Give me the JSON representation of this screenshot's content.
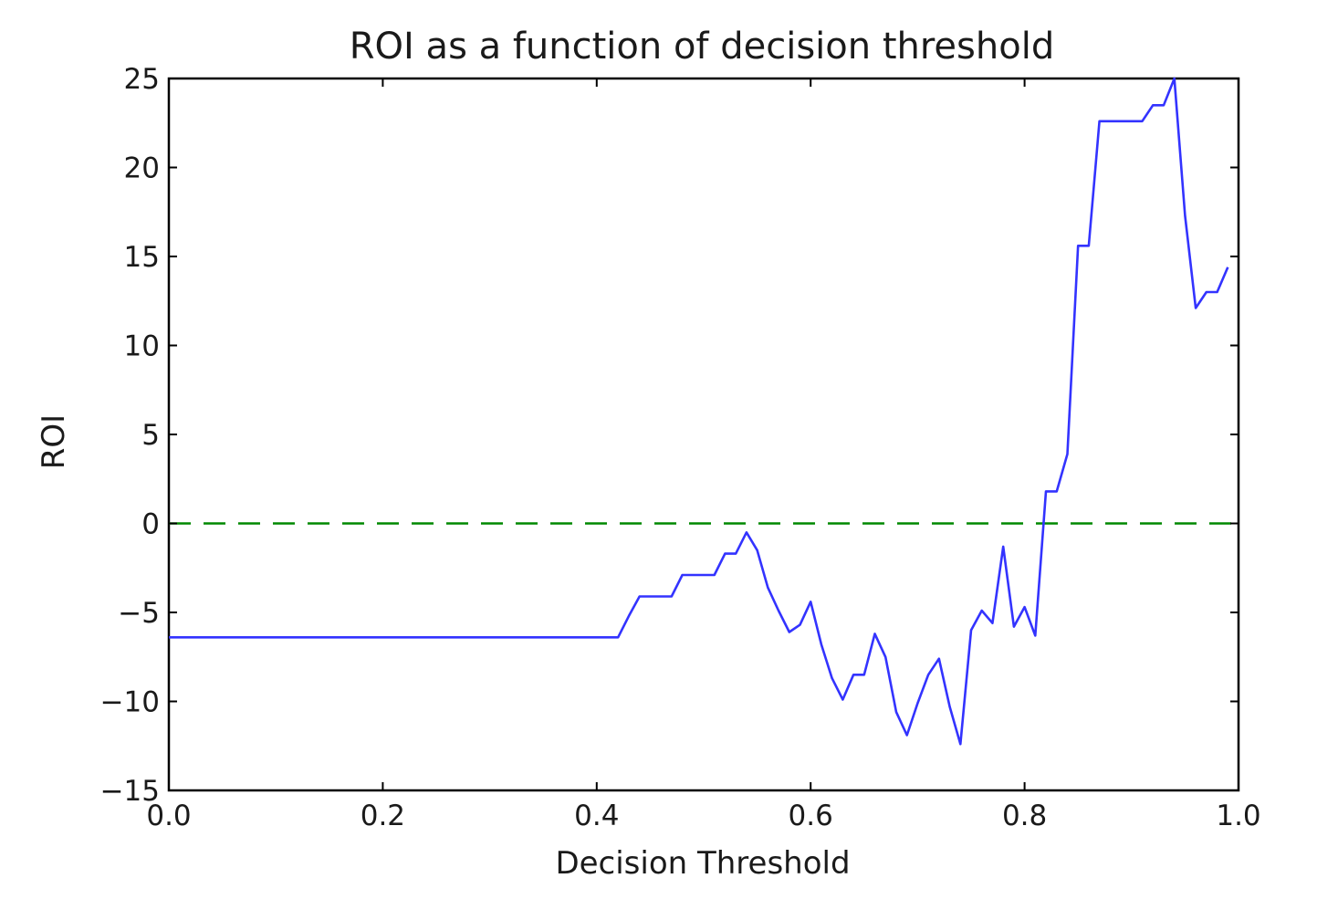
{
  "chart_data": {
    "type": "line",
    "title": "ROI as a function of decision threshold",
    "xlabel": "Decision Threshold",
    "ylabel": "ROI",
    "xlim": [
      0.0,
      1.0
    ],
    "ylim": [
      -15,
      25
    ],
    "xticks": [
      "0.0",
      "0.2",
      "0.4",
      "0.6",
      "0.8",
      "1.0"
    ],
    "yticks": [
      "−15",
      "−10",
      "−5",
      "0",
      "5",
      "10",
      "15",
      "20",
      "25"
    ],
    "grid": false,
    "legend": "none",
    "colors": {
      "roi_line": "#3333ff",
      "reference_line": "#008800",
      "axes": "#000000"
    },
    "reference_line": {
      "y": 0,
      "style": "dashed"
    },
    "series": [
      {
        "values_x": [
          0.0,
          0.01,
          0.02,
          0.03,
          0.04,
          0.05,
          0.06,
          0.07,
          0.08,
          0.09,
          0.1,
          0.11,
          0.12,
          0.13,
          0.14,
          0.15,
          0.16,
          0.17,
          0.18,
          0.19,
          0.2,
          0.21,
          0.22,
          0.23,
          0.24,
          0.25,
          0.26,
          0.27,
          0.28,
          0.29,
          0.3,
          0.31,
          0.32,
          0.33,
          0.34,
          0.35,
          0.36,
          0.37,
          0.38,
          0.39,
          0.4,
          0.41,
          0.42,
          0.43,
          0.44,
          0.45,
          0.46,
          0.47,
          0.48,
          0.49,
          0.5,
          0.51,
          0.52,
          0.53,
          0.54,
          0.55,
          0.56,
          0.57,
          0.58,
          0.59,
          0.6,
          0.61,
          0.62,
          0.63,
          0.64,
          0.65,
          0.66,
          0.67,
          0.68,
          0.69,
          0.7,
          0.71,
          0.72,
          0.73,
          0.74,
          0.75,
          0.76,
          0.77,
          0.78,
          0.79,
          0.8,
          0.81,
          0.82,
          0.83,
          0.84,
          0.85,
          0.86,
          0.87,
          0.88,
          0.89,
          0.9,
          0.91,
          0.92,
          0.93,
          0.94,
          0.95,
          0.96,
          0.97,
          0.98,
          0.99
        ],
        "values_y": [
          -6.4,
          -6.4,
          -6.4,
          -6.4,
          -6.4,
          -6.4,
          -6.4,
          -6.4,
          -6.4,
          -6.4,
          -6.4,
          -6.4,
          -6.4,
          -6.4,
          -6.4,
          -6.4,
          -6.4,
          -6.4,
          -6.4,
          -6.4,
          -6.4,
          -6.4,
          -6.4,
          -6.4,
          -6.4,
          -6.4,
          -6.4,
          -6.4,
          -6.4,
          -6.4,
          -6.4,
          -6.4,
          -6.4,
          -6.4,
          -6.4,
          -6.4,
          -6.4,
          -6.4,
          -6.4,
          -6.4,
          -6.4,
          -6.4,
          -6.4,
          -5.2,
          -4.1,
          -4.1,
          -4.1,
          -4.1,
          -2.9,
          -2.9,
          -2.9,
          -2.9,
          -1.7,
          -1.7,
          -0.5,
          -1.5,
          -3.6,
          -4.9,
          -6.1,
          -5.7,
          -4.4,
          -6.8,
          -8.7,
          -9.9,
          -8.5,
          -8.5,
          -6.2,
          -7.5,
          -10.6,
          -11.9,
          -10.1,
          -8.5,
          -7.6,
          -10.3,
          -12.4,
          -6.0,
          -4.9,
          -5.6,
          -1.3,
          -5.8,
          -4.7,
          -6.3,
          1.8,
          1.8,
          3.9,
          15.6,
          15.6,
          22.6,
          22.6,
          22.6,
          22.6,
          22.6,
          23.5,
          23.5,
          25.0,
          17.3,
          12.1,
          13.0,
          13.0,
          14.4
        ]
      }
    ]
  }
}
